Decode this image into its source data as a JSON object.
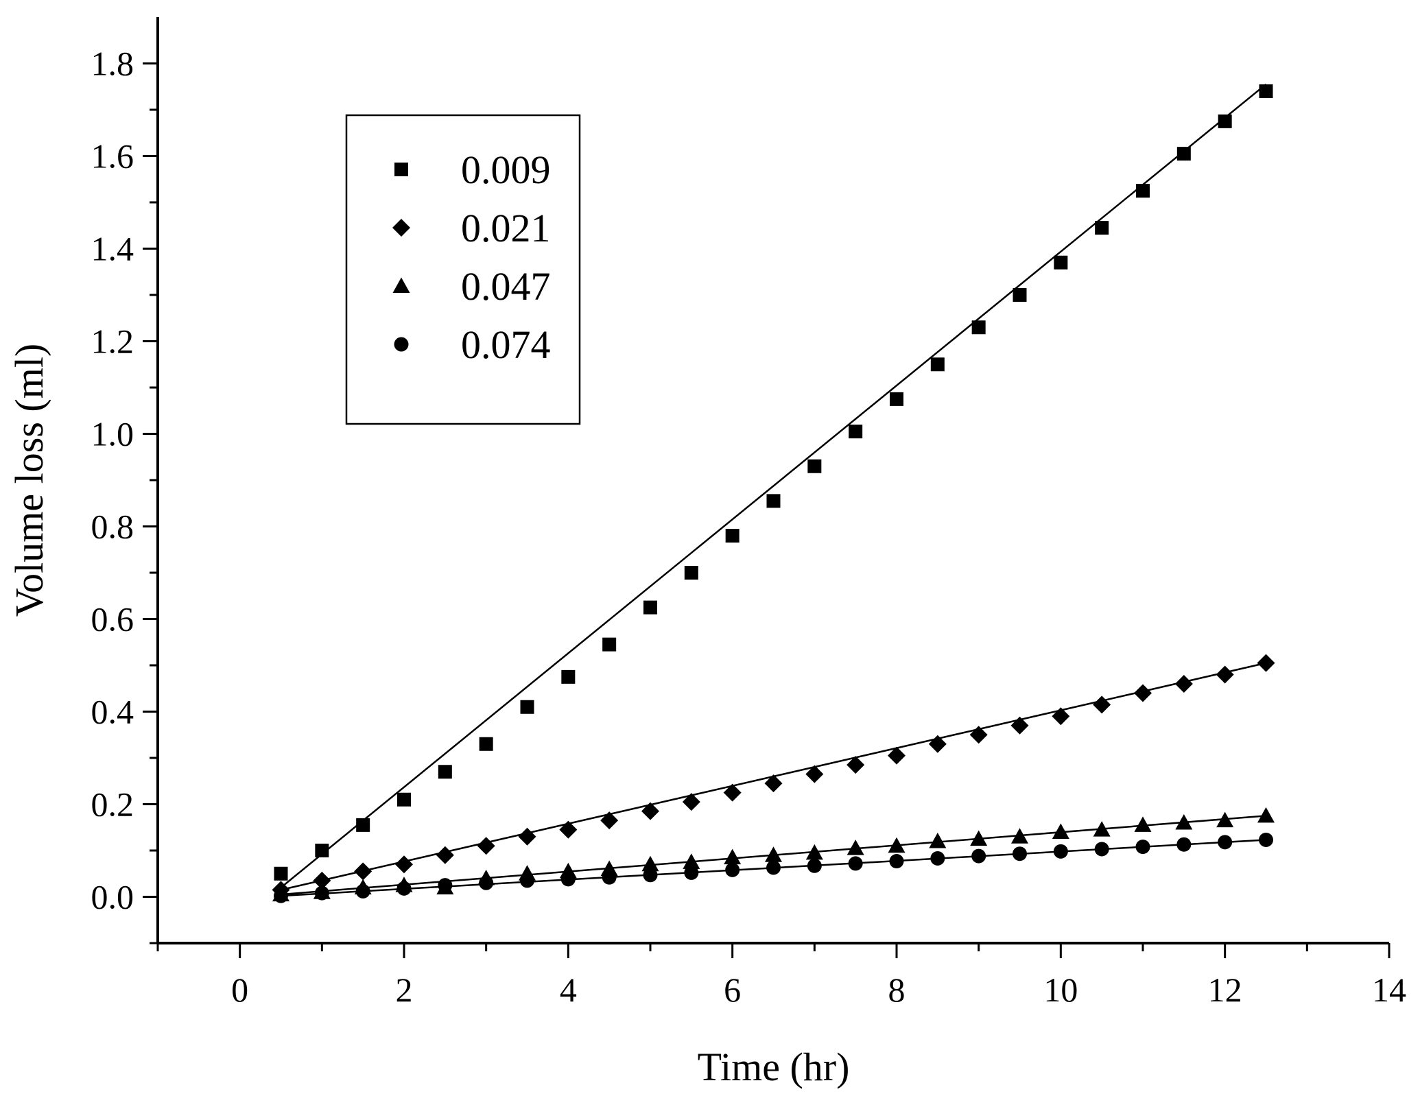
{
  "chart_data": {
    "type": "scatter",
    "title": "",
    "xlabel": "Time (hr)",
    "ylabel": "Volume loss (ml)",
    "xlim": [
      -1,
      14
    ],
    "ylim": [
      -0.1,
      1.9
    ],
    "xticks": [
      0,
      2,
      4,
      6,
      8,
      10,
      12,
      14
    ],
    "xtick_labels": [
      "0",
      "2",
      "4",
      "6",
      "8",
      "10",
      "12",
      "14"
    ],
    "yticks": [
      0.0,
      0.2,
      0.4,
      0.6,
      0.8,
      1.0,
      1.2,
      1.4,
      1.6,
      1.8
    ],
    "ytick_labels": [
      "0.0",
      "0.2",
      "0.4",
      "0.6",
      "0.8",
      "1.0",
      "1.2",
      "1.4",
      "1.6",
      "1.8"
    ],
    "legend_position": "top-left",
    "x": [
      0.5,
      1.0,
      1.5,
      2.0,
      2.5,
      3.0,
      3.5,
      4.0,
      4.5,
      5.0,
      5.5,
      6.0,
      6.5,
      7.0,
      7.5,
      8.0,
      8.5,
      9.0,
      9.5,
      10.0,
      10.5,
      11.0,
      11.5,
      12.0,
      12.5
    ],
    "series": [
      {
        "name": "0.009",
        "marker": "square",
        "values": [
          0.05,
          0.1,
          0.155,
          0.21,
          0.27,
          0.33,
          0.41,
          0.475,
          0.545,
          0.625,
          0.7,
          0.78,
          0.855,
          0.93,
          1.005,
          1.075,
          1.15,
          1.23,
          1.3,
          1.37,
          1.445,
          1.525,
          1.605,
          1.675,
          1.74
        ],
        "fit": [
          0.02,
          1.755
        ]
      },
      {
        "name": "0.021",
        "marker": "diamond",
        "values": [
          0.015,
          0.035,
          0.055,
          0.07,
          0.09,
          0.11,
          0.13,
          0.145,
          0.165,
          0.185,
          0.205,
          0.225,
          0.245,
          0.265,
          0.285,
          0.305,
          0.33,
          0.35,
          0.37,
          0.39,
          0.415,
          0.44,
          0.46,
          0.48,
          0.505
        ],
        "fit": [
          0.015,
          0.505
        ]
      },
      {
        "name": "0.047",
        "marker": "triangle",
        "values": [
          0.005,
          0.01,
          0.02,
          0.025,
          0.02,
          0.04,
          0.05,
          0.055,
          0.06,
          0.07,
          0.075,
          0.085,
          0.09,
          0.095,
          0.105,
          0.11,
          0.12,
          0.125,
          0.13,
          0.14,
          0.145,
          0.155,
          0.16,
          0.165,
          0.175
        ],
        "fit": [
          0.005,
          0.175
        ]
      },
      {
        "name": "0.074",
        "marker": "circle",
        "values": [
          0.002,
          0.008,
          0.012,
          0.018,
          0.025,
          0.03,
          0.035,
          0.038,
          0.042,
          0.047,
          0.052,
          0.058,
          0.063,
          0.067,
          0.072,
          0.077,
          0.083,
          0.088,
          0.093,
          0.098,
          0.103,
          0.108,
          0.113,
          0.118,
          0.123
        ],
        "fit": [
          0.002,
          0.123
        ]
      }
    ]
  }
}
